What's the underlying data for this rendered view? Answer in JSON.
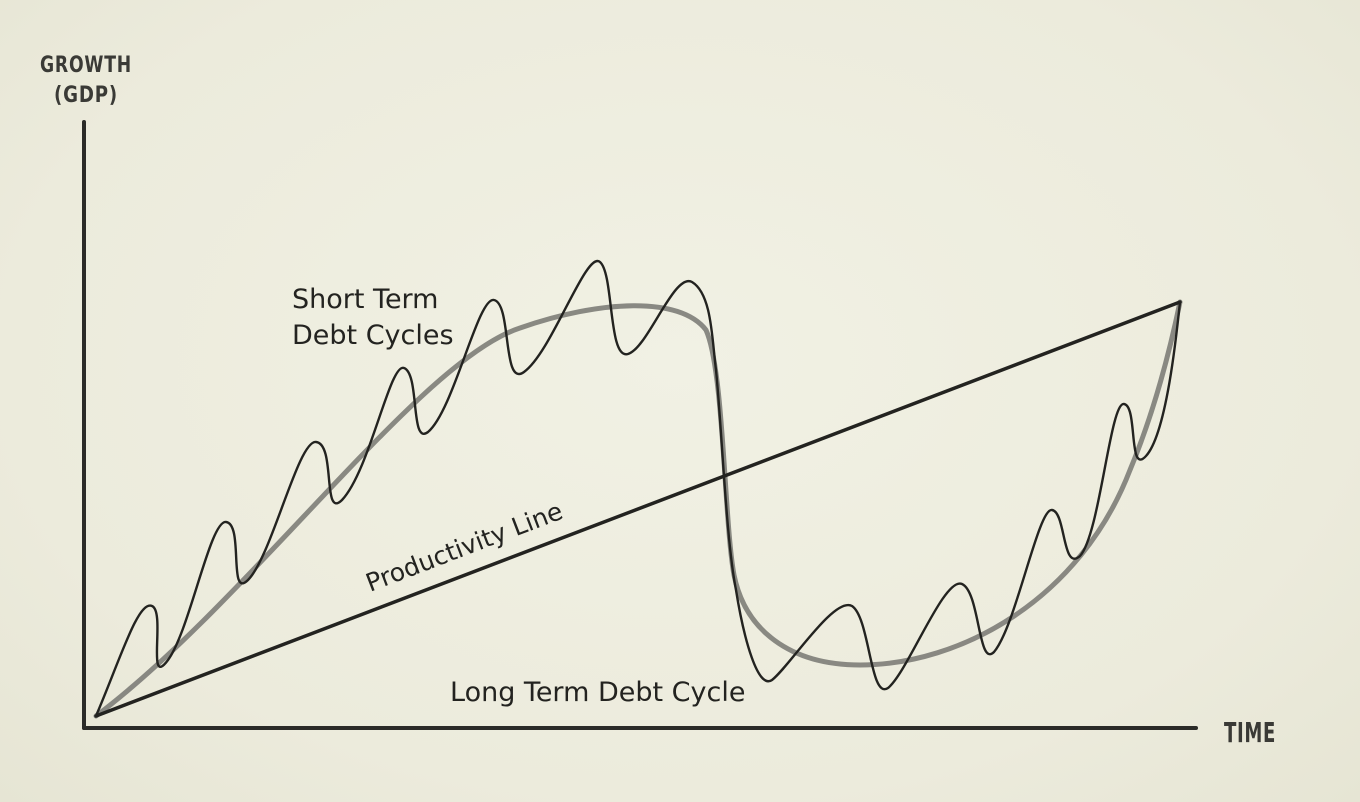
{
  "diagram": {
    "y_axis_label_line1": "GROWTH",
    "y_axis_label_line2": "(GDP)",
    "x_axis_label": "TIME",
    "short_term_label_line1": "Short Term",
    "short_term_label_line2": "Debt Cycles",
    "productivity_label": "Productivity Line",
    "long_term_label": "Long Term Debt Cycle",
    "colors": {
      "background": "#eeeee0",
      "ink": "#232320",
      "long_term_curve": "#7d7d78"
    }
  }
}
